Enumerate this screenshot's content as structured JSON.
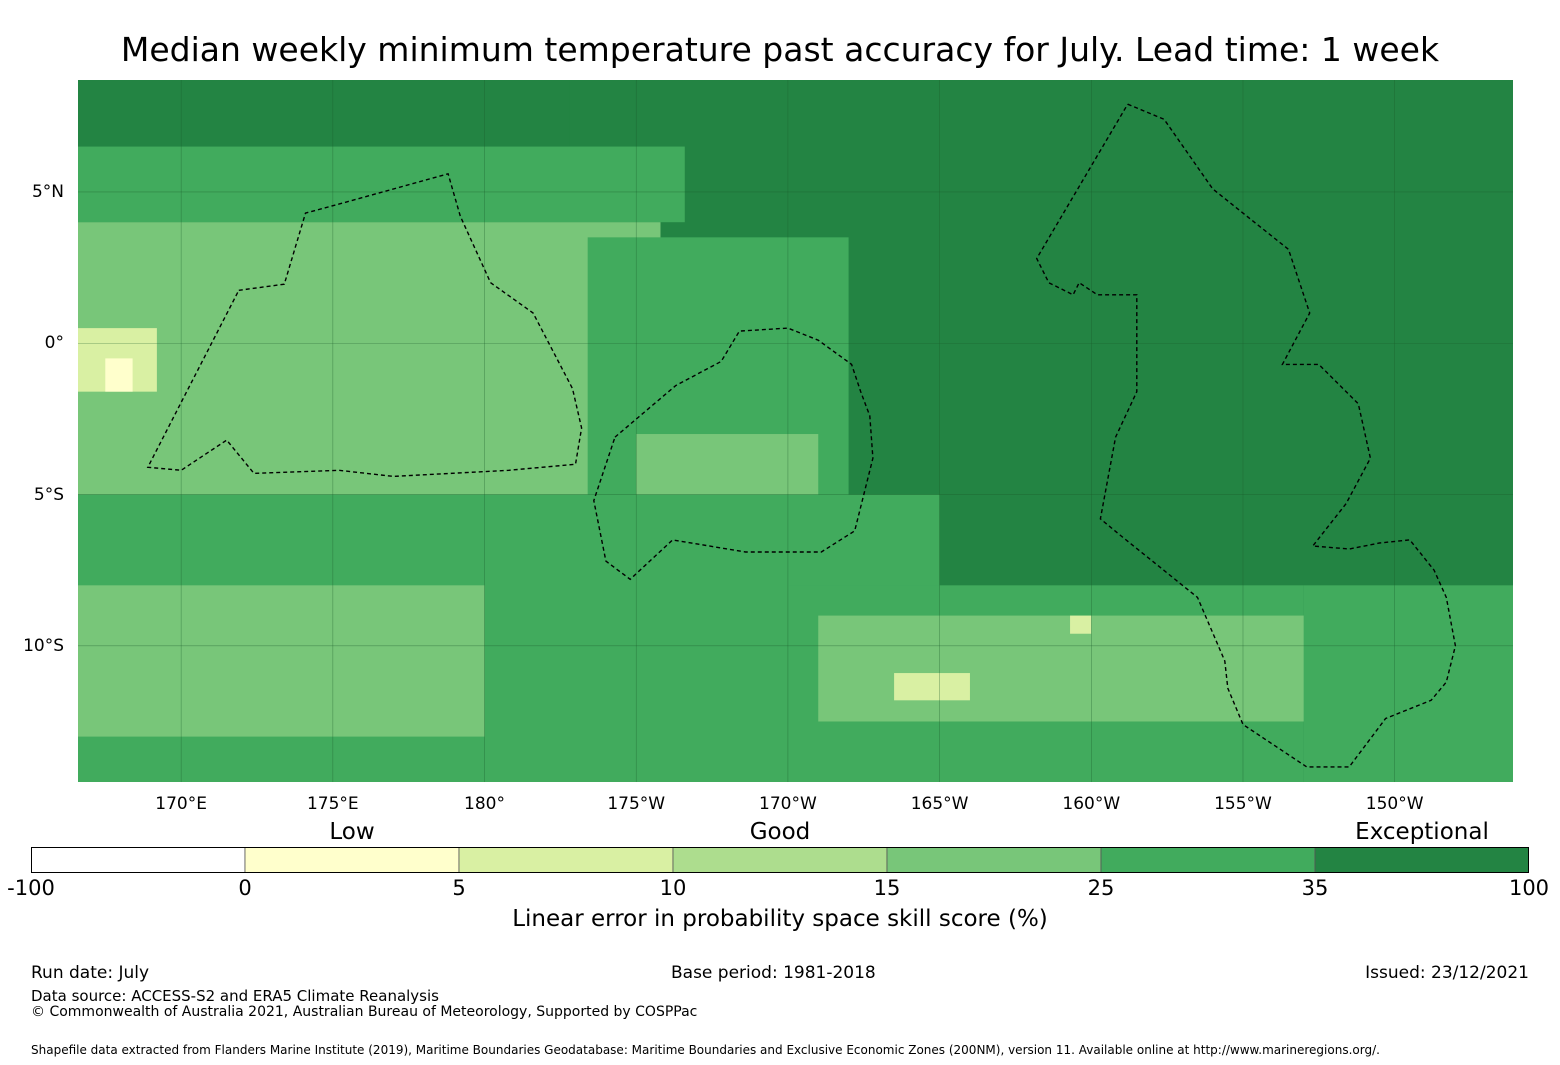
{
  "title": "Median weekly minimum temperature past accuracy for July. Lead time: 1 week",
  "map": {
    "lon_range": [
      166.6,
      213.9
    ],
    "lat_range": [
      -14.5,
      8.7
    ],
    "lat_labels": [
      {
        "lat": 5,
        "text": "5°N"
      },
      {
        "lat": 0,
        "text": "0°"
      },
      {
        "lat": -5,
        "text": "5°S"
      },
      {
        "lat": -10,
        "text": "10°S"
      }
    ],
    "lon_labels": [
      {
        "lon": 170,
        "text": "170°E"
      },
      {
        "lon": 175,
        "text": "175°E"
      },
      {
        "lon": 180,
        "text": "180°"
      },
      {
        "lon": 185,
        "text": "175°W"
      },
      {
        "lon": 190,
        "text": "170°W"
      },
      {
        "lon": 195,
        "text": "165°W"
      },
      {
        "lon": 200,
        "text": "160°W"
      },
      {
        "lon": 205,
        "text": "155°W"
      },
      {
        "lon": 210,
        "text": "150°W"
      }
    ],
    "gridlines": true,
    "eez_boundaries": "dashed",
    "base_color": "#238443",
    "regions": [
      {
        "name": "northwest-dark",
        "lon": [
          166.6,
          182.8
        ],
        "lat": [
          6.5,
          8.7
        ],
        "color": "#238443"
      },
      {
        "name": "northwest-band",
        "lon": [
          166.6,
          186.6
        ],
        "lat": [
          4.0,
          6.5
        ],
        "color": "#41ab5d"
      },
      {
        "name": "west-cluster",
        "lon": [
          166.6,
          185.8
        ],
        "lat": [
          -5.0,
          4.0
        ],
        "color": "#78c679"
      },
      {
        "name": "central-band",
        "lon": [
          183.4,
          192.0
        ],
        "lat": [
          -8.0,
          3.5
        ],
        "color": "#41ab5d"
      },
      {
        "name": "central-pocket",
        "lon": [
          185.0,
          191.0
        ],
        "lat": [
          -7.0,
          -3.0
        ],
        "color": "#78c679"
      },
      {
        "name": "southwest-band",
        "lon": [
          166.6,
          195.0
        ],
        "lat": [
          -14.5,
          -5.0
        ],
        "color": "#41ab5d"
      },
      {
        "name": "south-pale",
        "lon": [
          166.6,
          180.0
        ],
        "lat": [
          -13.0,
          -8.0
        ],
        "color": "#78c679"
      },
      {
        "name": "equator-light",
        "lon": [
          166.6,
          169.2
        ],
        "lat": [
          -1.6,
          0.5
        ],
        "color": "#d9f0a3"
      },
      {
        "name": "equator-lightest",
        "lon": [
          167.5,
          168.4
        ],
        "lat": [
          -1.6,
          -0.5
        ],
        "color": "#ffffcc"
      },
      {
        "name": "south-central",
        "lon": [
          190.0,
          207.0
        ],
        "lat": [
          -14.5,
          -8.0
        ],
        "color": "#41ab5d"
      },
      {
        "name": "south-central-pale",
        "lon": [
          191.0,
          208.0
        ],
        "lat": [
          -12.5,
          -9.0
        ],
        "color": "#78c679"
      },
      {
        "name": "southeast-dark",
        "lon": [
          207.0,
          213.9
        ],
        "lat": [
          -14.5,
          -8.0
        ],
        "color": "#41ab5d"
      },
      {
        "name": "pale-spot-1",
        "lon": [
          193.5,
          196.0
        ],
        "lat": [
          -11.8,
          -10.9
        ],
        "color": "#d9f0a3"
      },
      {
        "name": "pale-spot-2",
        "lon": [
          199.3,
          200.0
        ],
        "lat": [
          -9.6,
          -9.0
        ],
        "color": "#d9f0a3"
      }
    ],
    "eez": [
      {
        "name": "kiribati-gilbert-eez",
        "points": [
          [
            171.9,
            1.75
          ],
          [
            173.4,
            1.95
          ],
          [
            174.1,
            4.3
          ],
          [
            175.2,
            4.6
          ],
          [
            178.8,
            5.6
          ],
          [
            179.2,
            4.2
          ],
          [
            180.2,
            2.0
          ],
          [
            181.6,
            1.0
          ],
          [
            182.9,
            -1.5
          ],
          [
            183.2,
            -2.8
          ],
          [
            183.0,
            -4.0
          ],
          [
            180.8,
            -4.2
          ],
          [
            177.0,
            -4.4
          ],
          [
            175.2,
            -4.2
          ],
          [
            172.4,
            -4.3
          ],
          [
            171.5,
            -3.2
          ],
          [
            170.0,
            -4.2
          ],
          [
            168.9,
            -4.1
          ],
          [
            171.9,
            1.75
          ]
        ]
      },
      {
        "name": "kiribati-phoenix-eez",
        "points": [
          [
            184.3,
            -3.1
          ],
          [
            186.3,
            -1.4
          ],
          [
            187.8,
            -0.6
          ],
          [
            188.4,
            0.4
          ],
          [
            190.0,
            0.5
          ],
          [
            191.0,
            0.1
          ],
          [
            192.1,
            -0.7
          ],
          [
            192.4,
            -1.6
          ],
          [
            192.7,
            -2.4
          ],
          [
            192.8,
            -3.8
          ],
          [
            192.2,
            -6.2
          ],
          [
            191.1,
            -6.9
          ],
          [
            188.6,
            -6.9
          ],
          [
            186.2,
            -6.5
          ],
          [
            184.8,
            -7.8
          ],
          [
            184.0,
            -7.2
          ],
          [
            183.6,
            -5.2
          ],
          [
            184.3,
            -3.1
          ]
        ]
      },
      {
        "name": "kiribati-line-eez",
        "points": [
          [
            201.2,
            7.9
          ],
          [
            202.4,
            7.4
          ],
          [
            204.0,
            5.1
          ],
          [
            206.5,
            3.1
          ],
          [
            207.2,
            1.0
          ],
          [
            206.3,
            -0.7
          ],
          [
            207.5,
            -0.7
          ],
          [
            208.8,
            -2.0
          ],
          [
            209.2,
            -3.8
          ],
          [
            208.4,
            -5.3
          ],
          [
            207.3,
            -6.7
          ],
          [
            208.5,
            -6.8
          ],
          [
            209.5,
            -6.6
          ],
          [
            210.5,
            -6.5
          ],
          [
            211.3,
            -7.5
          ],
          [
            211.7,
            -8.4
          ],
          [
            212.0,
            -10.0
          ],
          [
            211.7,
            -11.2
          ],
          [
            211.2,
            -11.8
          ],
          [
            209.7,
            -12.4
          ],
          [
            208.5,
            -14.0
          ],
          [
            207.1,
            -14.0
          ],
          [
            205.0,
            -12.6
          ],
          [
            204.5,
            -11.4
          ],
          [
            204.4,
            -10.5
          ],
          [
            203.5,
            -8.4
          ],
          [
            200.9,
            -6.3
          ],
          [
            200.3,
            -5.8
          ],
          [
            200.8,
            -3.1
          ],
          [
            201.5,
            -1.6
          ],
          [
            201.5,
            1.6
          ],
          [
            200.2,
            1.6
          ],
          [
            199.6,
            2.0
          ],
          [
            199.4,
            1.6
          ],
          [
            198.6,
            2.0
          ],
          [
            198.2,
            2.8
          ],
          [
            201.2,
            7.9
          ]
        ]
      }
    ]
  },
  "colorbar": {
    "categories": [
      {
        "text": "Low",
        "pos": 1.5
      },
      {
        "text": "Good",
        "pos": 3.5
      },
      {
        "text": "Exceptional",
        "pos": 6.5
      }
    ],
    "bins": [
      {
        "from": "-100",
        "to": "0",
        "color": "#ffffff"
      },
      {
        "from": "0",
        "to": "5",
        "color": "#ffffcc"
      },
      {
        "from": "5",
        "to": "10",
        "color": "#d9f0a3"
      },
      {
        "from": "10",
        "to": "15",
        "color": "#addd8e"
      },
      {
        "from": "15",
        "to": "25",
        "color": "#78c679"
      },
      {
        "from": "25",
        "to": "35",
        "color": "#41ab5d"
      },
      {
        "from": "35",
        "to": "100",
        "color": "#238443"
      }
    ],
    "ticks": [
      "-100",
      "0",
      "5",
      "10",
      "15",
      "25",
      "35",
      "100"
    ],
    "label": "Linear error in probability space skill score (%)"
  },
  "footer": {
    "run_date": "Run date: July",
    "base_period": "Base period: 1981-2018",
    "issued": "Issued: 23/12/2021",
    "data_source": "Data source: ACCESS-S2 and ERA5 Climate Reanalysis",
    "copyright": "© Commonwealth of Australia 2021, Australian Bureau of Meteorology, Supported by COSPPac",
    "shapefile": "Shapefile data extracted from Flanders Marine Institute (2019), Maritime Boundaries Geodatabase: Maritime Boundaries and Exclusive Economic Zones (200NM), version 11. Available online at http://www.marineregions.org/."
  }
}
